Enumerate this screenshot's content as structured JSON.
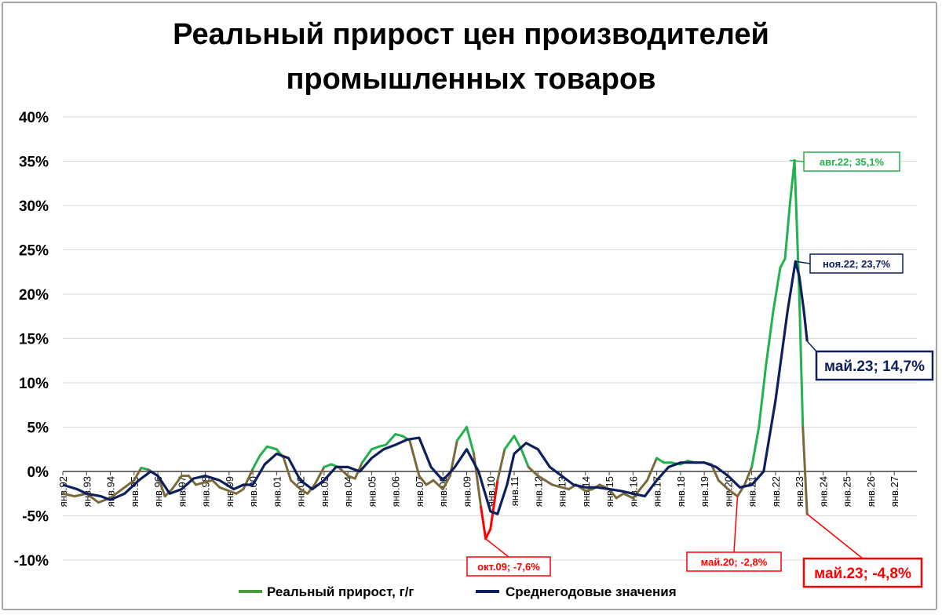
{
  "chart_data": {
    "type": "line",
    "title_lines": [
      "Реальный прирост цен производителей",
      "промышленных товаров"
    ],
    "y_ticks": [
      "40%",
      "35%",
      "30%",
      "25%",
      "20%",
      "15%",
      "10%",
      "5%",
      "0%",
      "-5%",
      "-10%"
    ],
    "ylim": [
      -10,
      40
    ],
    "x_ticks": [
      "янв.92",
      "янв.93",
      "янв.94",
      "янв.95",
      "янв.96",
      "янв.97",
      "янв.98",
      "янв.99",
      "янв.00",
      "янв.01",
      "янв.02",
      "янв.03",
      "янв.04",
      "янв.05",
      "янв.06",
      "янв.07",
      "янв.08",
      "янв.09",
      "янв.10",
      "янв.11",
      "янв.12",
      "янв.13",
      "янв.14",
      "янв.15",
      "янв.16",
      "янв.17",
      "янв.18",
      "янв.19",
      "янв.20",
      "янв.21",
      "янв.22",
      "янв.23",
      "янв.24",
      "янв.25",
      "янв.26",
      "янв.27"
    ],
    "x_start_year": 1992,
    "grid": true,
    "legend_position": "bottom",
    "series": [
      {
        "name": "Реальный прирост, г/г",
        "color_positive": "#22b14c",
        "color_negative": "#ff0000",
        "color_mixed": "#7a6a3a",
        "x": [
          1992.0,
          1992.5,
          1993.0,
          1993.5,
          1994.0,
          1994.5,
          1995.0,
          1995.3,
          1995.6,
          1996.0,
          1996.3,
          1996.6,
          1997.0,
          1997.3,
          1997.6,
          1998.0,
          1998.3,
          1998.6,
          1999.0,
          1999.3,
          1999.6,
          2000.0,
          2000.3,
          2000.6,
          2001.0,
          2001.3,
          2001.6,
          2002.0,
          2002.3,
          2002.6,
          2003.0,
          2003.3,
          2003.6,
          2004.0,
          2004.3,
          2004.6,
          2005.0,
          2005.3,
          2005.6,
          2006.0,
          2006.3,
          2006.6,
          2007.0,
          2007.3,
          2007.6,
          2008.0,
          2008.3,
          2008.6,
          2009.0,
          2009.3,
          2009.6,
          2009.8,
          2010.0,
          2010.3,
          2010.6,
          2011.0,
          2011.3,
          2011.6,
          2012.0,
          2012.3,
          2012.6,
          2013.0,
          2013.3,
          2013.6,
          2014.0,
          2014.3,
          2014.6,
          2015.0,
          2015.3,
          2015.6,
          2016.0,
          2016.3,
          2016.6,
          2017.0,
          2017.3,
          2017.6,
          2018.0,
          2018.3,
          2018.6,
          2019.0,
          2019.3,
          2019.6,
          2020.0,
          2020.4,
          2020.7,
          2021.0,
          2021.3,
          2021.6,
          2021.9,
          2022.2,
          2022.4,
          2022.6,
          2022.8,
          2023.0,
          2023.15,
          2023.33
        ],
        "values": [
          -2.5,
          -2.8,
          -2.5,
          -3.5,
          -3.0,
          -2.0,
          -1.0,
          0.4,
          0.2,
          -0.5,
          -2.8,
          -2.0,
          -0.5,
          -0.5,
          -1.5,
          -1.2,
          -1.0,
          -1.8,
          -2.2,
          -2.5,
          -2.0,
          0.3,
          1.8,
          2.8,
          2.5,
          1.5,
          -1.0,
          -2.0,
          -2.5,
          -1.5,
          0.5,
          0.8,
          0.5,
          -0.5,
          -0.8,
          1.0,
          2.5,
          2.8,
          3.0,
          4.2,
          4.0,
          3.5,
          -0.5,
          -1.5,
          -1.0,
          -2.0,
          -0.5,
          3.5,
          5.0,
          2.0,
          -4.0,
          -7.6,
          -6.5,
          -1.0,
          2.5,
          4.0,
          2.5,
          0.5,
          -0.5,
          -1.0,
          -1.5,
          -1.8,
          -2.0,
          -1.5,
          -2.2,
          -2.0,
          -1.5,
          -2.0,
          -3.0,
          -2.5,
          -3.0,
          -2.0,
          -1.0,
          1.5,
          1.0,
          1.0,
          0.8,
          1.2,
          1.0,
          1.0,
          0.8,
          -1.0,
          -2.0,
          -2.8,
          -1.5,
          0.5,
          5.0,
          12.0,
          18.0,
          23.0,
          24.0,
          30.0,
          35.1,
          20.0,
          5.0,
          -4.8
        ]
      },
      {
        "name": "Среднегодовые значения",
        "color": "#0d1f5c",
        "x": [
          1992.0,
          1992.6,
          1993.0,
          1993.6,
          1994.0,
          1994.6,
          1995.2,
          1995.7,
          1996.0,
          1996.5,
          1997.0,
          1997.5,
          1998.0,
          1998.6,
          1999.2,
          1999.6,
          2000.0,
          2000.5,
          2001.0,
          2001.5,
          2002.0,
          2002.5,
          2003.0,
          2003.5,
          2004.0,
          2004.5,
          2005.0,
          2005.5,
          2006.0,
          2006.5,
          2007.0,
          2007.5,
          2008.0,
          2008.5,
          2009.0,
          2009.5,
          2010.0,
          2010.3,
          2010.7,
          2011.0,
          2011.5,
          2012.0,
          2012.5,
          2013.0,
          2013.5,
          2014.0,
          2014.5,
          2015.0,
          2015.5,
          2016.0,
          2016.5,
          2017.0,
          2017.5,
          2018.0,
          2018.5,
          2019.0,
          2019.5,
          2020.0,
          2020.5,
          2021.0,
          2021.5,
          2022.0,
          2022.5,
          2022.84,
          2023.0,
          2023.2,
          2023.33
        ],
        "values": [
          -1.5,
          -2.0,
          -2.5,
          -2.8,
          -3.2,
          -2.5,
          -1.0,
          0.0,
          -0.5,
          -2.5,
          -2.0,
          -0.8,
          -0.5,
          -1.0,
          -2.0,
          -1.5,
          -1.5,
          0.8,
          2.0,
          1.5,
          -1.0,
          -2.0,
          -1.0,
          0.5,
          0.5,
          0.0,
          1.5,
          2.5,
          3.0,
          3.6,
          3.8,
          0.5,
          -1.0,
          0.5,
          2.5,
          0.0,
          -4.5,
          -4.8,
          -1.5,
          2.0,
          3.2,
          2.5,
          0.5,
          -0.5,
          -1.5,
          -1.8,
          -1.8,
          -2.0,
          -2.2,
          -2.5,
          -2.8,
          -1.0,
          0.5,
          1.0,
          1.0,
          1.0,
          0.5,
          -0.5,
          -1.8,
          -1.5,
          0.0,
          8.0,
          18.0,
          23.7,
          22.0,
          18.0,
          14.7
        ]
      }
    ],
    "annotations": [
      {
        "text": "авг.22; 35,1%",
        "x": 2022.6,
        "y": 35.1,
        "series": 0,
        "style": "small",
        "color": "#22b14c"
      },
      {
        "text": "ноя.22; 23,7%",
        "x": 2022.84,
        "y": 23.7,
        "series": 1,
        "style": "small",
        "color": "#0d1f5c"
      },
      {
        "text": "май.23; 14,7%",
        "x": 2023.33,
        "y": 14.7,
        "series": 1,
        "style": "big",
        "color": "#0d1f5c"
      },
      {
        "text": "окт.09; -7,6%",
        "x": 2009.8,
        "y": -7.6,
        "series": 0,
        "style": "small",
        "color": "#ff0000"
      },
      {
        "text": "май.20; -2,8%",
        "x": 2020.4,
        "y": -2.8,
        "series": 0,
        "style": "small",
        "color": "#ff0000"
      },
      {
        "text": "май.23; -4,8%",
        "x": 2023.33,
        "y": -4.8,
        "series": 0,
        "style": "big",
        "color": "#ff0000"
      }
    ]
  }
}
